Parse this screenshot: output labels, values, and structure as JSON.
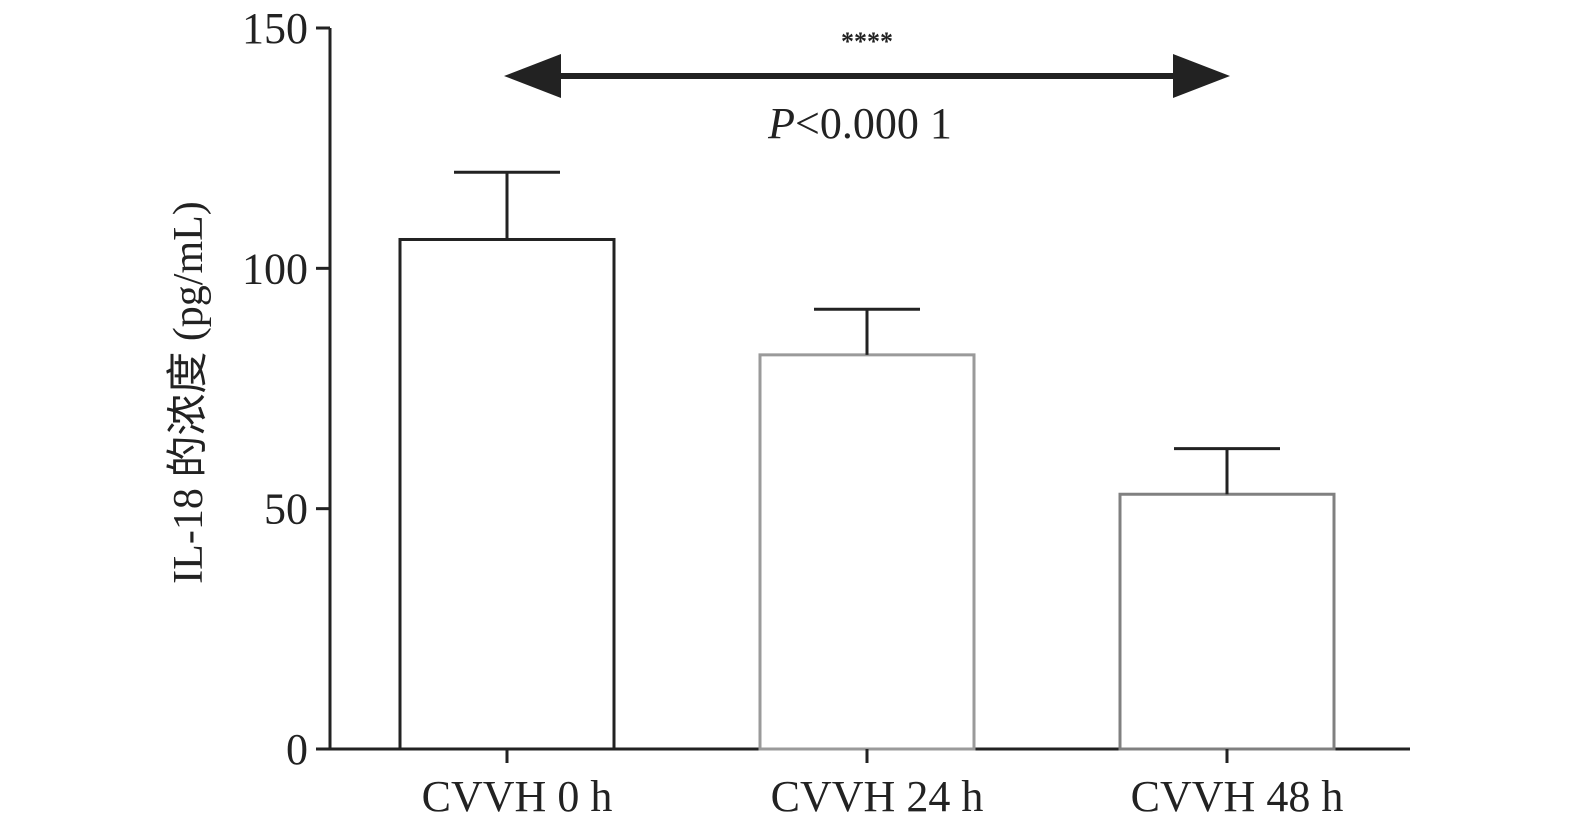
{
  "chart_data": {
    "type": "bar",
    "title": "",
    "xlabel": "",
    "ylabel": "IL-18 的浓度 (pg/mL)",
    "ylim": [
      0,
      150
    ],
    "yticks": [
      0,
      50,
      100,
      150
    ],
    "grid": false,
    "categories": [
      "CVVH 0 h",
      "CVVH 24 h",
      "CVVH 48 h"
    ],
    "values": [
      106,
      82,
      53
    ],
    "error_upper": [
      120,
      91.5,
      62.5
    ],
    "bar_edge_colors": [
      "#222222",
      "#9a9a9a",
      "#808080"
    ],
    "annotation": {
      "stars": "****",
      "text_italic": "P",
      "text_rest": "<0.000 1",
      "spans": [
        "CVVH 0 h",
        "CVVH 48 h"
      ]
    }
  }
}
